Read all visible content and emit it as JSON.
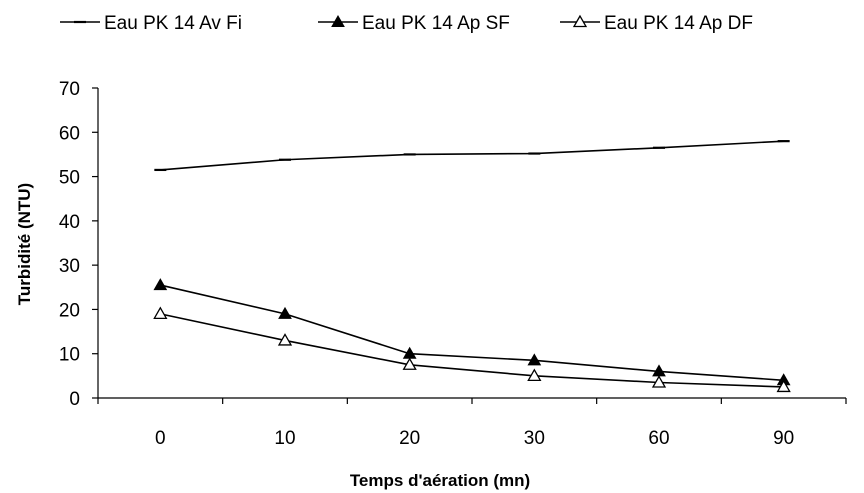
{
  "chart_data": {
    "type": "line",
    "title": "",
    "xlabel": "Temps d'aération (mn)",
    "ylabel": "Turbidité (NTU)",
    "categories": [
      "0",
      "10",
      "20",
      "30",
      "60",
      "90"
    ],
    "ylim": [
      0,
      70
    ],
    "yticks": [
      "0",
      "10",
      "20",
      "30",
      "40",
      "50",
      "60",
      "70"
    ],
    "grid": false,
    "legend_position": "top",
    "series": [
      {
        "name": "Eau PK 14 Av Fi",
        "marker": "dash",
        "color": "#000000",
        "values": [
          51.5,
          53.8,
          55.0,
          55.2,
          56.5,
          58.0
        ]
      },
      {
        "name": "Eau PK 14 Ap SF",
        "marker": "filled-triangle",
        "color": "#000000",
        "values": [
          25.5,
          19.0,
          10.0,
          8.5,
          6.0,
          4.0
        ]
      },
      {
        "name": "Eau PK 14 Ap DF",
        "marker": "open-triangle",
        "color": "#000000",
        "values": [
          19.0,
          13.0,
          7.5,
          5.0,
          3.5,
          2.5
        ]
      }
    ]
  }
}
